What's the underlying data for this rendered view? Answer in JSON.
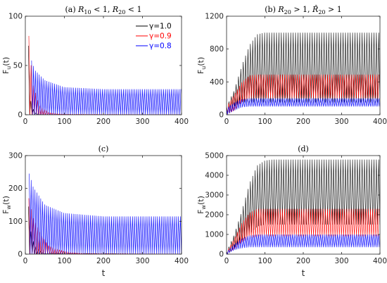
{
  "colors": {
    "gamma_1_0": "#000000",
    "gamma_0_9": "#ff0000",
    "gamma_0_8": "#0000ff"
  },
  "chart_data": [
    {
      "type": "line",
      "title": "(a) R10 < 1, R20 < 1",
      "title_parts": [
        "(a) ",
        "R",
        "10",
        " < 1, ",
        "R",
        "20",
        " < 1"
      ],
      "ylabel": "F_u(t)",
      "ylabel_main": "F",
      "ylabel_sub": "u",
      "ylabel_rest": "(t)",
      "xlabel": "",
      "xlim": [
        0,
        400
      ],
      "ylim": [
        0,
        100
      ],
      "xticks": [
        "0",
        "100",
        "200",
        "300",
        "400"
      ],
      "yticks": [
        "0",
        "50",
        "100"
      ],
      "legend": {
        "position": "top-right",
        "entries": [
          "γ=1.0",
          "γ=0.9",
          "γ=0.8"
        ]
      },
      "series": [
        {
          "name": "γ=1.0",
          "envelope": {
            "x": [
              8,
              11,
              15,
              25,
              40,
              400
            ],
            "max": [
              70,
              30,
              10,
              2,
              0.3,
              0
            ],
            "min": [
              0,
              0,
              0,
              0,
              0,
              0
            ]
          }
        },
        {
          "name": "γ=0.9",
          "envelope": {
            "x": [
              9,
              12,
              20,
              35,
              60,
              100,
              400
            ],
            "max": [
              80,
              60,
              30,
              10,
              2,
              0.5,
              0
            ],
            "min": [
              0,
              0,
              0,
              0,
              0,
              0,
              0
            ]
          }
        },
        {
          "name": "γ=0.8",
          "envelope": {
            "x": [
              16,
              25,
              50,
              100,
              200,
              400
            ],
            "max": [
              55,
              45,
              35,
              28,
              26,
              26
            ],
            "min": [
              0,
              0,
              0,
              0,
              0,
              0
            ]
          }
        }
      ]
    },
    {
      "type": "line",
      "title": "(b) R20 > 1, R̂20 > 1",
      "title_parts": [
        "(b) ",
        "R",
        "20",
        " > 1, ",
        "R̂",
        "20",
        " > 1"
      ],
      "ylabel": "F_u(t)",
      "ylabel_main": "F",
      "ylabel_sub": "u",
      "ylabel_rest": "(t)",
      "xlabel": "",
      "xlim": [
        0,
        400
      ],
      "ylim": [
        0,
        1200
      ],
      "xticks": [
        "0",
        "100",
        "200",
        "300",
        "400"
      ],
      "yticks": [
        "0",
        "400",
        "800",
        "1200"
      ],
      "series": [
        {
          "name": "γ=1.0",
          "envelope": {
            "x": [
              0,
              20,
              40,
              60,
              80,
              100,
              400
            ],
            "max": [
              100,
              300,
              600,
              850,
              980,
              1000,
              1000
            ],
            "min": [
              0,
              100,
              150,
              150,
              150,
              150,
              150
            ]
          }
        },
        {
          "name": "γ=0.9",
          "envelope": {
            "x": [
              0,
              20,
              40,
              60,
              80,
              400
            ],
            "max": [
              100,
              250,
              400,
              480,
              490,
              490
            ],
            "min": [
              0,
              50,
              150,
              200,
              200,
              200
            ]
          }
        },
        {
          "name": "γ=0.8",
          "envelope": {
            "x": [
              0,
              20,
              40,
              60,
              400
            ],
            "max": [
              80,
              150,
              190,
              200,
              200
            ],
            "min": [
              0,
              50,
              90,
              100,
              100
            ]
          }
        }
      ]
    },
    {
      "type": "line",
      "title": "(c)",
      "ylabel": "F_w(t)",
      "ylabel_main": "F",
      "ylabel_sub": "w",
      "ylabel_rest": "(t)",
      "xlabel": "t",
      "xlim": [
        0,
        400
      ],
      "ylim": [
        0,
        300
      ],
      "xticks": [
        "0",
        "100",
        "200",
        "300",
        "400"
      ],
      "yticks": [
        "0",
        "100",
        "200",
        "300"
      ],
      "series": [
        {
          "name": "γ=1.0",
          "envelope": {
            "x": [
              8,
              12,
              20,
              30,
              50,
              400
            ],
            "max": [
              145,
              80,
              40,
              15,
              3,
              0
            ],
            "min": [
              0,
              0,
              0,
              0,
              0,
              0
            ]
          }
        },
        {
          "name": "γ=0.9",
          "envelope": {
            "x": [
              9,
              12,
              20,
              40,
              60,
              100,
              140,
              400
            ],
            "max": [
              170,
              150,
              110,
              60,
              25,
              8,
              2,
              0
            ],
            "min": [
              0,
              0,
              0,
              0,
              0,
              0,
              0,
              0
            ]
          }
        },
        {
          "name": "γ=0.8",
          "envelope": {
            "x": [
              10,
              20,
              50,
              100,
              200,
              400
            ],
            "max": [
              245,
              205,
              150,
              125,
              115,
              115
            ],
            "min": [
              0,
              0,
              0,
              0,
              0,
              0
            ]
          }
        }
      ]
    },
    {
      "type": "line",
      "title": "(d)",
      "ylabel": "F_w(t)",
      "ylabel_main": "F",
      "ylabel_sub": "w",
      "ylabel_rest": "(t)",
      "xlabel": "t",
      "xlim": [
        0,
        400
      ],
      "ylim": [
        0,
        5000
      ],
      "xticks": [
        "0",
        "100",
        "200",
        "300",
        "400"
      ],
      "yticks": [
        "0",
        "1000",
        "2000",
        "3000",
        "4000",
        "5000"
      ],
      "series": [
        {
          "name": "γ=1.0",
          "envelope": {
            "x": [
              0,
              20,
              40,
              60,
              80,
              100,
              120,
              400
            ],
            "max": [
              100,
              1000,
              2200,
              3600,
              4500,
              4750,
              4800,
              4800
            ],
            "min": [
              0,
              300,
              700,
              1000,
              1400,
              1500,
              1500,
              1500
            ]
          }
        },
        {
          "name": "γ=0.9",
          "envelope": {
            "x": [
              0,
              20,
              40,
              60,
              80,
              100,
              400
            ],
            "max": [
              100,
              800,
              1600,
              2100,
              2300,
              2300,
              2300
            ],
            "min": [
              0,
              250,
              600,
              800,
              900,
              900,
              900
            ]
          }
        },
        {
          "name": "γ=0.8",
          "envelope": {
            "x": [
              0,
              20,
              40,
              60,
              80,
              400
            ],
            "max": [
              100,
              500,
              800,
              950,
              1000,
              1000
            ],
            "min": [
              0,
              200,
              300,
              350,
              350,
              350
            ]
          }
        }
      ]
    }
  ]
}
